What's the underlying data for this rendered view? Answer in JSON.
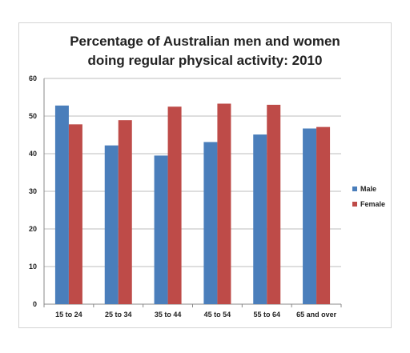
{
  "chart_data": {
    "type": "bar",
    "title_line1": "Percentage of Australian men and women",
    "title_line2": "doing regular physical activity: 2010",
    "categories": [
      "15 to 24",
      "25 to 34",
      "35 to 44",
      "45 to 54",
      "55 to 64",
      "65 and over"
    ],
    "series": [
      {
        "name": "Male",
        "color": "#4a7ebb",
        "values": [
          52.8,
          42.2,
          39.5,
          43.1,
          45.1,
          46.7
        ]
      },
      {
        "name": "Female",
        "color": "#be4b48",
        "values": [
          47.8,
          48.9,
          52.5,
          53.3,
          53.0,
          47.1
        ]
      }
    ],
    "ylim": [
      0,
      60
    ],
    "yticks": [
      0,
      10,
      20,
      30,
      40,
      50,
      60
    ],
    "grid": true,
    "legend_position": "right"
  }
}
